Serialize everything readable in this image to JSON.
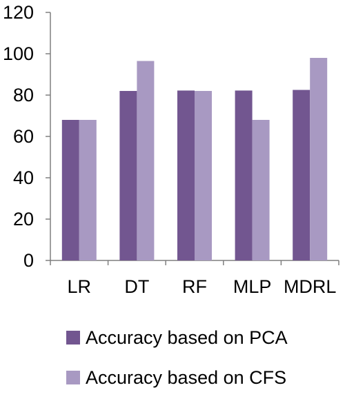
{
  "chart_data": {
    "type": "bar",
    "categories": [
      "LR",
      "DT",
      "RF",
      "MLP",
      "MDRL"
    ],
    "series": [
      {
        "name": "Accuracy based on PCA",
        "values": [
          68,
          82,
          82.2,
          82.2,
          82.5
        ],
        "color": "#725690"
      },
      {
        "name": "Accuracy based on CFS",
        "values": [
          68,
          96.5,
          82,
          68,
          98
        ],
        "color": "#A899C2"
      }
    ],
    "y_ticks": [
      "0",
      "20",
      "40",
      "60",
      "80",
      "100",
      "120"
    ],
    "ylim": [
      0,
      120
    ],
    "grid": false,
    "legend_position": "bottom"
  }
}
